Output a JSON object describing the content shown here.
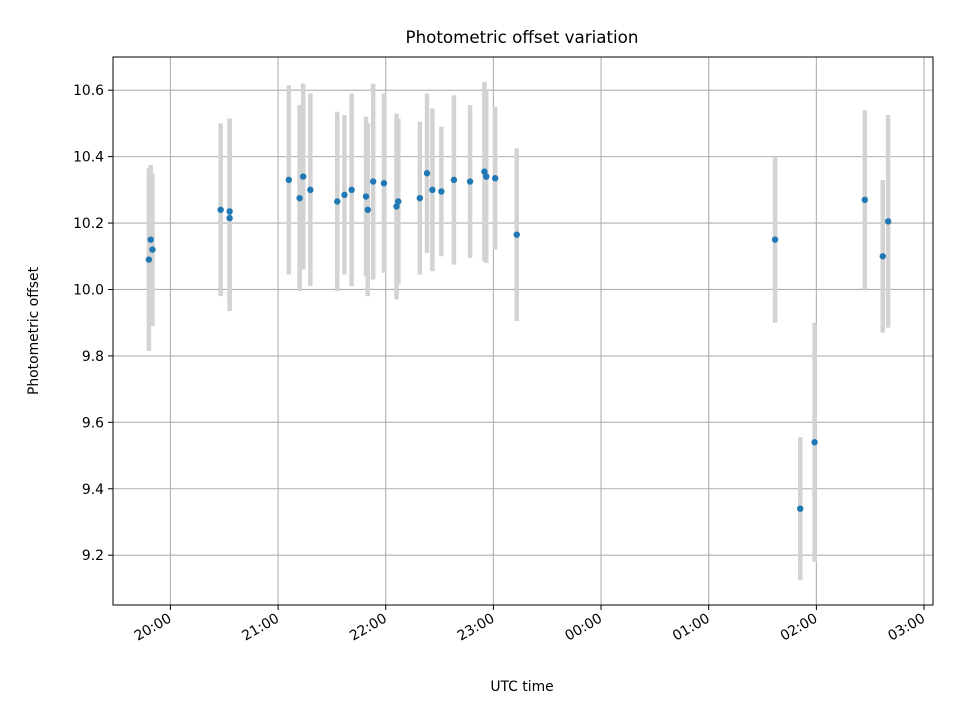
{
  "chart_data": {
    "type": "scatter",
    "title": "Photometric offset variation",
    "xlabel": "UTC time",
    "ylabel": "Photometric offset",
    "x_ticks": [
      "20:00",
      "21:00",
      "22:00",
      "23:00",
      "00:00",
      "01:00",
      "02:00",
      "03:00"
    ],
    "y_ticks": [
      "9.2",
      "9.4",
      "9.6",
      "9.8",
      "10.0",
      "10.2",
      "10.4",
      "10.6"
    ],
    "y_tick_values": [
      9.2,
      9.4,
      9.6,
      9.8,
      10.0,
      10.2,
      10.4,
      10.6
    ],
    "xlim": [
      "19:28",
      "03:05"
    ],
    "ylim": [
      9.05,
      10.7
    ],
    "grid": true,
    "point_color": "#1f77b4",
    "errorbar_color": "#d3d3d3",
    "points": [
      {
        "x": "19:48",
        "y": 10.09,
        "err": 0.275
      },
      {
        "x": "19:49",
        "y": 10.15,
        "err": 0.225
      },
      {
        "x": "19:50",
        "y": 10.12,
        "err": 0.23
      },
      {
        "x": "20:28",
        "y": 10.24,
        "err": 0.26
      },
      {
        "x": "20:33",
        "y": 10.215,
        "err": 0.28
      },
      {
        "x": "20:33",
        "y": 10.235,
        "err": 0.28
      },
      {
        "x": "21:06",
        "y": 10.33,
        "err": 0.285
      },
      {
        "x": "21:12",
        "y": 10.275,
        "err": 0.28
      },
      {
        "x": "21:14",
        "y": 10.34,
        "err": 0.28
      },
      {
        "x": "21:18",
        "y": 10.3,
        "err": 0.29
      },
      {
        "x": "21:33",
        "y": 10.265,
        "err": 0.27
      },
      {
        "x": "21:37",
        "y": 10.285,
        "err": 0.24
      },
      {
        "x": "21:41",
        "y": 10.3,
        "err": 0.29
      },
      {
        "x": "21:49",
        "y": 10.28,
        "err": 0.24
      },
      {
        "x": "21:50",
        "y": 10.24,
        "err": 0.26
      },
      {
        "x": "21:53",
        "y": 10.325,
        "err": 0.295
      },
      {
        "x": "21:59",
        "y": 10.32,
        "err": 0.27
      },
      {
        "x": "22:06",
        "y": 10.25,
        "err": 0.28
      },
      {
        "x": "22:07",
        "y": 10.265,
        "err": 0.25
      },
      {
        "x": "22:19",
        "y": 10.275,
        "err": 0.23
      },
      {
        "x": "22:23",
        "y": 10.35,
        "err": 0.24
      },
      {
        "x": "22:26",
        "y": 10.3,
        "err": 0.245
      },
      {
        "x": "22:31",
        "y": 10.295,
        "err": 0.195
      },
      {
        "x": "22:38",
        "y": 10.33,
        "err": 0.255
      },
      {
        "x": "22:47",
        "y": 10.325,
        "err": 0.23
      },
      {
        "x": "22:55",
        "y": 10.355,
        "err": 0.27
      },
      {
        "x": "22:56",
        "y": 10.34,
        "err": 0.26
      },
      {
        "x": "23:01",
        "y": 10.335,
        "err": 0.215
      },
      {
        "x": "23:13",
        "y": 10.165,
        "err": 0.26
      },
      {
        "x": "01:37",
        "y": 10.15,
        "err": 0.25
      },
      {
        "x": "01:51",
        "y": 9.34,
        "err": 0.215
      },
      {
        "x": "01:59",
        "y": 9.54,
        "err": 0.36
      },
      {
        "x": "02:27",
        "y": 10.27,
        "err": 0.27
      },
      {
        "x": "02:37",
        "y": 10.1,
        "err": 0.23
      },
      {
        "x": "02:40",
        "y": 10.205,
        "err": 0.32
      }
    ]
  }
}
